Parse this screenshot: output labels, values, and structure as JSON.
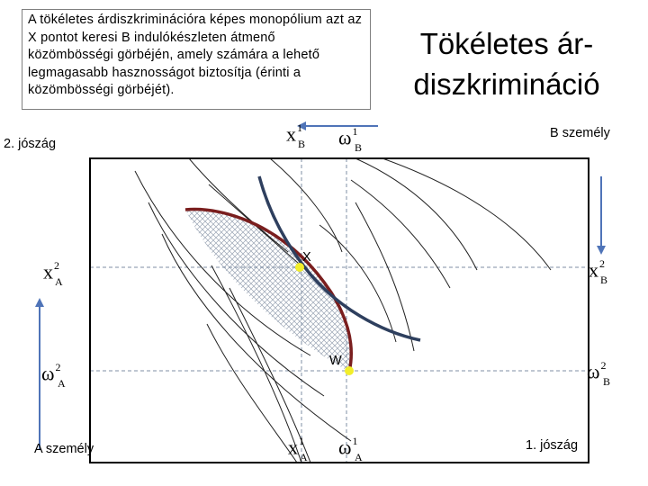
{
  "note": "A tökéletes árdiszkriminációra képes monopólium azt az X pontot keresi B indulókészleten átmenő közömbösségi görbéjén, amely számára a lehető legmagasabb hasznosságot biztosítja (érinti a közömbösségi görbéjét).",
  "title_line1": "Tökéletes ár-",
  "title_line2": "diszkrimináció",
  "labels": {
    "good2": "2. jószág",
    "good1": "1. jószág",
    "personA": "A személy",
    "personB": "B személy",
    "pointX": "X",
    "pointW": "W"
  },
  "symbols": {
    "x": "x",
    "omega": "ω",
    "sup1": "1",
    "sup2": "2",
    "subA": "A",
    "subB": "B"
  },
  "colors": {
    "personA_curve": "#7a1e1e",
    "personB_curve": "#2e3f5e",
    "arrow": "#4f74b8",
    "point": "#f2ee2a",
    "dashed": "#7f8fa6",
    "hatch": "#9aa4b4"
  }
}
